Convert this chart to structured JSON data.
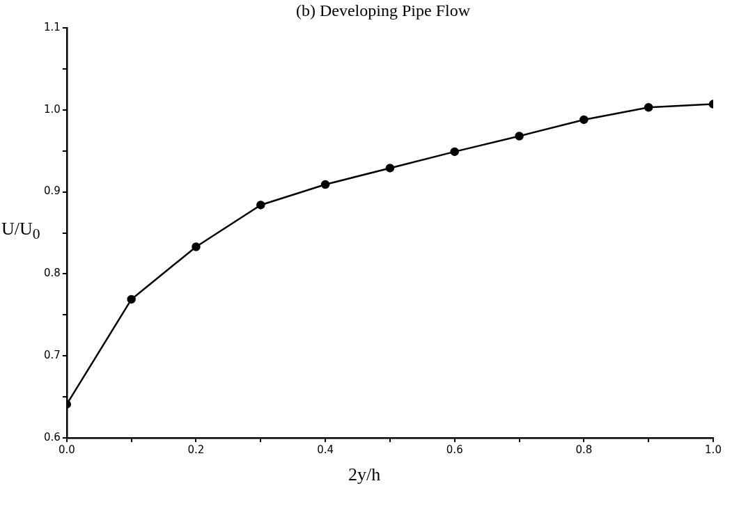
{
  "chart_data": {
    "type": "line",
    "title": "(b) Developing Pipe Flow",
    "xlabel": "2y/h",
    "ylabel": "U/U$_{0}$",
    "x": [
      0.0,
      0.1,
      0.2,
      0.3,
      0.4,
      0.5,
      0.6,
      0.7,
      0.8,
      0.9,
      1.0
    ],
    "series": [
      {
        "color": "#000000",
        "values": [
          0.641,
          0.769,
          0.833,
          0.884,
          0.909,
          0.929,
          0.949,
          0.968,
          0.988,
          1.003,
          1.007
        ]
      }
    ],
    "xlim": [
      0,
      1
    ],
    "ylim": [
      0.6,
      1.1
    ],
    "xticks": [
      {
        "value": 0,
        "label": "0.0"
      },
      {
        "value": 0.1,
        "label": null
      },
      0.2,
      {
        "value": 0.3,
        "label": null
      },
      0.4,
      {
        "value": 0.5,
        "label": null
      },
      0.6,
      {
        "value": 0.7,
        "label": null
      },
      0.8,
      {
        "value": 0.9,
        "label": null
      },
      {
        "value": 1,
        "label": "1.0"
      }
    ],
    "yticks": [
      0.6,
      {
        "value": 0.65,
        "label": null
      },
      0.7,
      {
        "value": 0.75,
        "label": null
      },
      0.8,
      {
        "value": 0.85,
        "label": null
      },
      0.9,
      {
        "value": 0.95,
        "label": null
      },
      {
        "value": 1,
        "label": "1.0"
      },
      {
        "value": 1.05,
        "label": null
      },
      1.1
    ],
    "grid": false,
    "legend": false,
    "marker": "circle",
    "line_style": "solid"
  }
}
